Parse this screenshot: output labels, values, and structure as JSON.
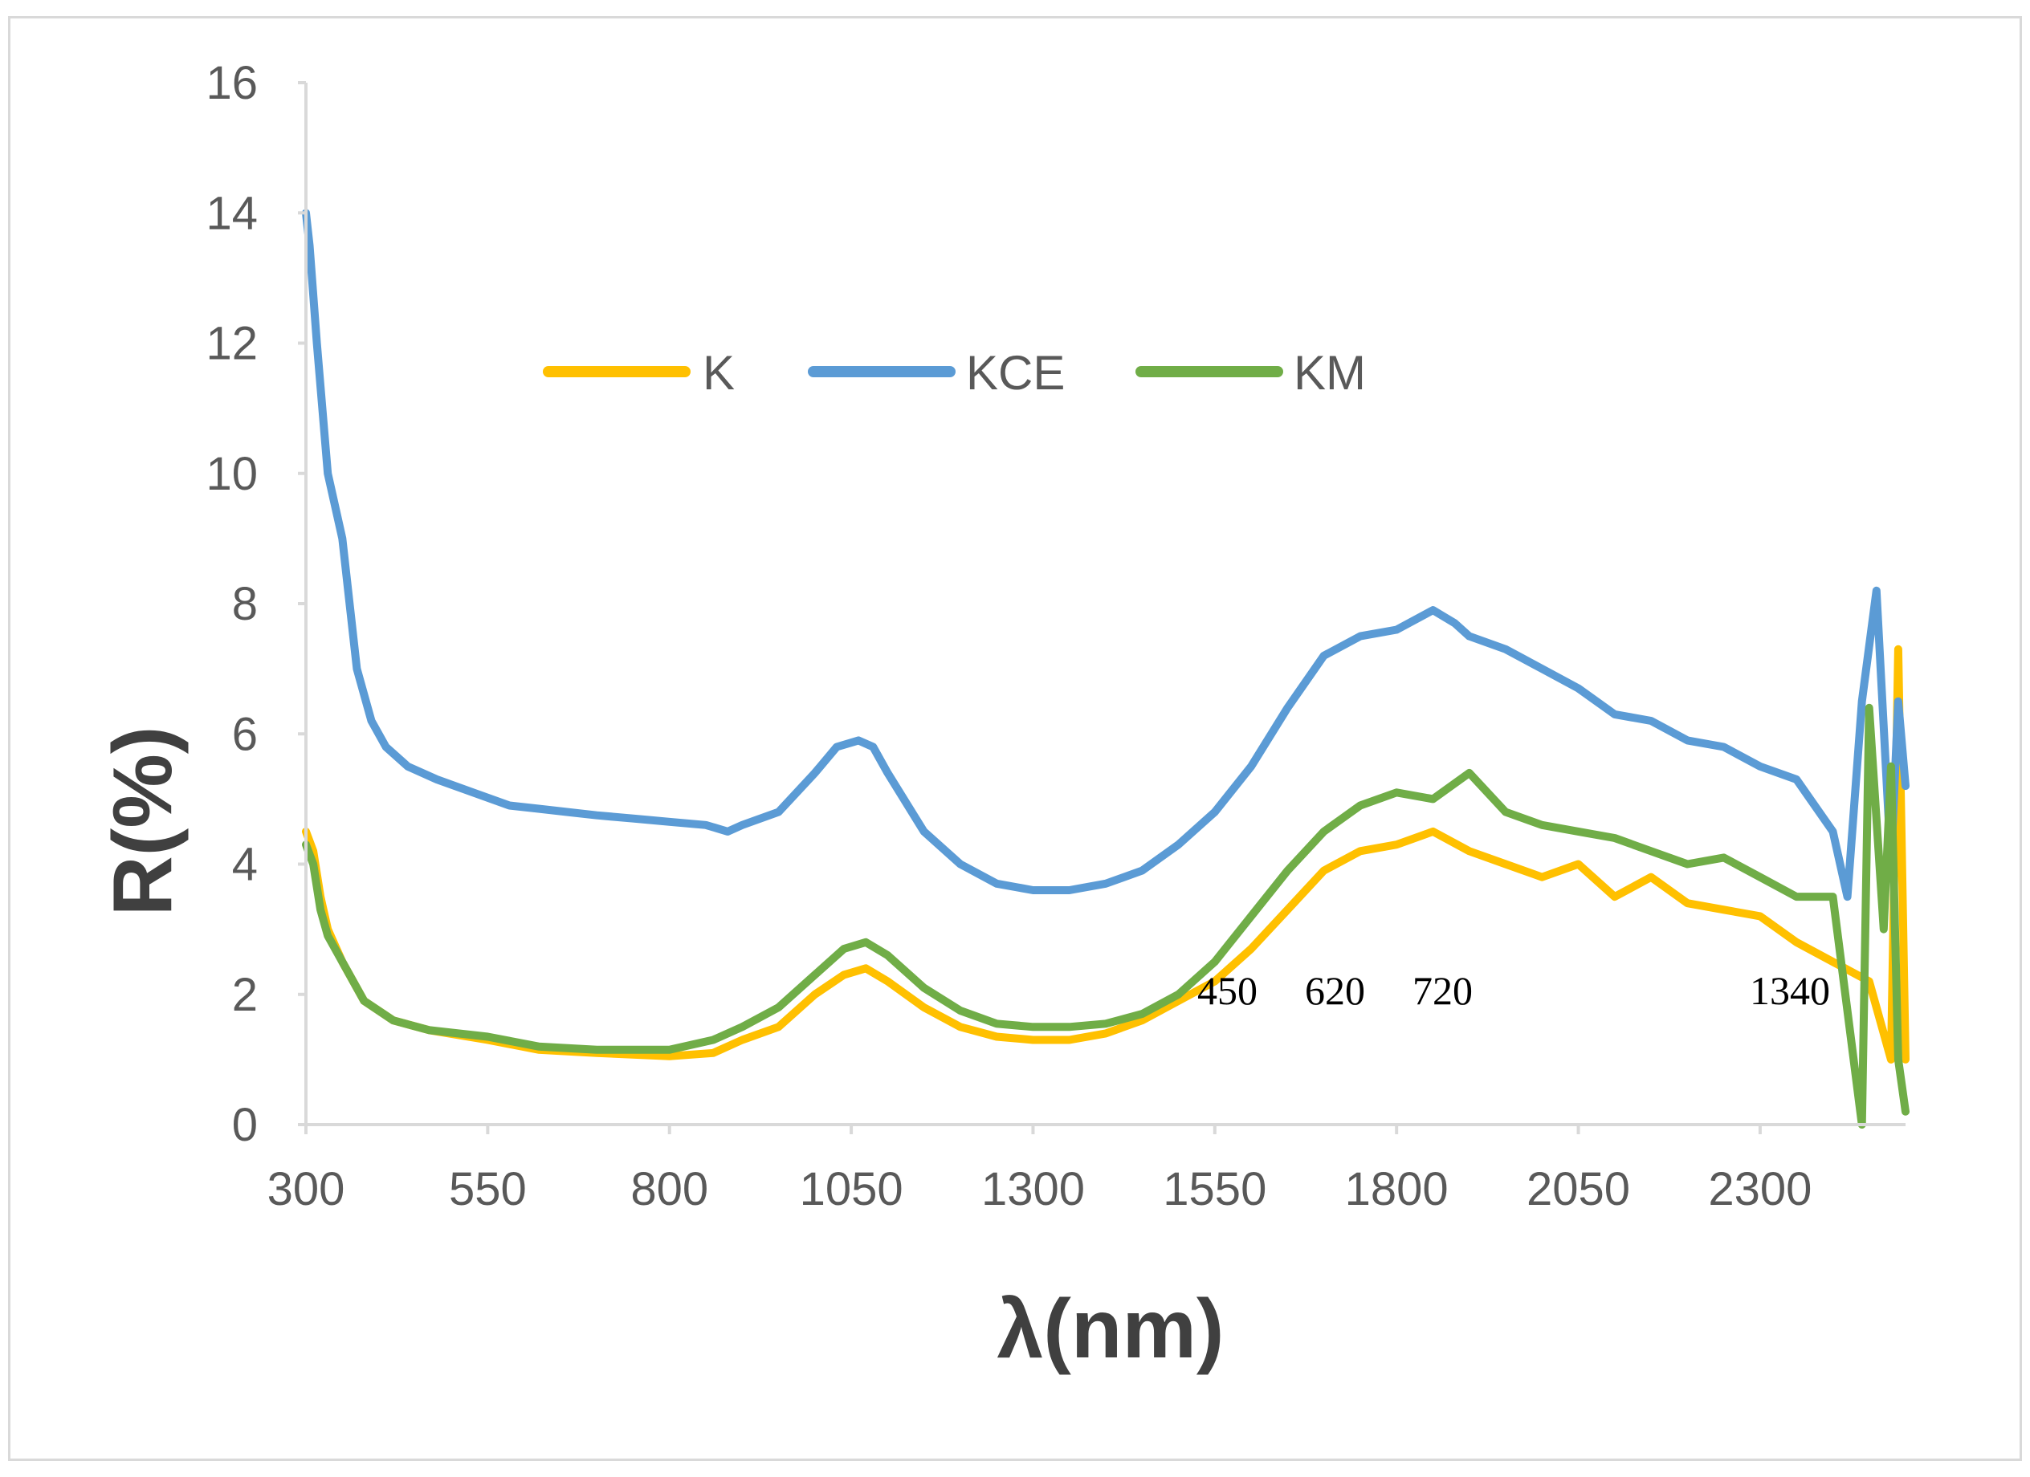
{
  "chart_data": {
    "type": "line",
    "xlabel": "λ(nm)",
    "ylabel": "R(%)",
    "xlim": [
      300,
      2500
    ],
    "ylim": [
      0,
      16
    ],
    "x_ticks": [
      300,
      550,
      800,
      1050,
      1300,
      1550,
      1800,
      2050,
      2300
    ],
    "y_ticks": [
      0,
      2,
      4,
      6,
      8,
      10,
      12,
      14,
      16
    ],
    "grid": false,
    "legend_position": "top",
    "series": [
      {
        "name": "K",
        "color": "#FFC000",
        "x": [
          300,
          310,
          320,
          330,
          350,
          380,
          420,
          470,
          550,
          620,
          700,
          800,
          860,
          900,
          950,
          1000,
          1040,
          1070,
          1100,
          1150,
          1200,
          1250,
          1300,
          1350,
          1400,
          1450,
          1500,
          1550,
          1600,
          1650,
          1700,
          1750,
          1800,
          1850,
          1900,
          1950,
          2000,
          2050,
          2100,
          2150,
          2200,
          2250,
          2300,
          2350,
          2400,
          2450,
          2480,
          2490,
          2500
        ],
        "y": [
          4.5,
          4.2,
          3.5,
          3.0,
          2.5,
          1.9,
          1.6,
          1.45,
          1.3,
          1.15,
          1.1,
          1.05,
          1.1,
          1.3,
          1.5,
          2.0,
          2.3,
          2.4,
          2.2,
          1.8,
          1.5,
          1.35,
          1.3,
          1.3,
          1.4,
          1.6,
          1.9,
          2.2,
          2.7,
          3.3,
          3.9,
          4.2,
          4.3,
          4.5,
          4.2,
          4.0,
          3.8,
          4.0,
          3.5,
          3.8,
          3.4,
          3.3,
          3.2,
          2.8,
          2.5,
          2.2,
          1.0,
          7.3,
          1.0
        ]
      },
      {
        "name": "KCE",
        "color": "#5B9BD5",
        "x": [
          300,
          305,
          315,
          330,
          350,
          370,
          390,
          410,
          440,
          480,
          530,
          580,
          620,
          660,
          700,
          750,
          800,
          850,
          880,
          900,
          950,
          1000,
          1030,
          1060,
          1080,
          1100,
          1150,
          1200,
          1250,
          1300,
          1350,
          1400,
          1450,
          1500,
          1550,
          1600,
          1650,
          1700,
          1750,
          1800,
          1850,
          1880,
          1900,
          1950,
          2000,
          2050,
          2100,
          2150,
          2200,
          2250,
          2300,
          2350,
          2400,
          2420,
          2440,
          2460,
          2480,
          2490,
          2500
        ],
        "y": [
          14.0,
          13.5,
          12.0,
          10.0,
          9.0,
          7.0,
          6.2,
          5.8,
          5.5,
          5.3,
          5.1,
          4.9,
          4.85,
          4.8,
          4.75,
          4.7,
          4.65,
          4.6,
          4.5,
          4.6,
          4.8,
          5.4,
          5.8,
          5.9,
          5.8,
          5.4,
          4.5,
          4.0,
          3.7,
          3.6,
          3.6,
          3.7,
          3.9,
          4.3,
          4.8,
          5.5,
          6.4,
          7.2,
          7.5,
          7.6,
          7.9,
          7.7,
          7.5,
          7.3,
          7.0,
          6.7,
          6.3,
          6.2,
          5.9,
          5.8,
          5.5,
          5.3,
          4.5,
          3.5,
          6.5,
          8.2,
          4.0,
          6.5,
          5.2
        ]
      },
      {
        "name": "KM",
        "color": "#70AD47",
        "x": [
          300,
          310,
          320,
          330,
          350,
          380,
          420,
          470,
          550,
          620,
          700,
          800,
          860,
          900,
          950,
          1000,
          1040,
          1070,
          1100,
          1150,
          1200,
          1250,
          1300,
          1350,
          1400,
          1450,
          1500,
          1550,
          1600,
          1650,
          1700,
          1750,
          1800,
          1850,
          1900,
          1950,
          2000,
          2050,
          2100,
          2150,
          2200,
          2250,
          2300,
          2350,
          2400,
          2440,
          2450,
          2470,
          2480,
          2490,
          2500
        ],
        "y": [
          4.3,
          4.0,
          3.3,
          2.9,
          2.5,
          1.9,
          1.6,
          1.45,
          1.35,
          1.2,
          1.15,
          1.15,
          1.3,
          1.5,
          1.8,
          2.3,
          2.7,
          2.8,
          2.6,
          2.1,
          1.75,
          1.55,
          1.5,
          1.5,
          1.55,
          1.7,
          2.0,
          2.5,
          3.2,
          3.9,
          4.5,
          4.9,
          5.1,
          5.0,
          5.4,
          4.8,
          4.6,
          4.5,
          4.4,
          4.2,
          4.0,
          4.1,
          3.8,
          3.5,
          3.5,
          0.0,
          6.4,
          3.0,
          5.5,
          1.0,
          0.2
        ]
      }
    ],
    "annotations": [
      "450",
      "620",
      "720",
      "1340"
    ]
  }
}
